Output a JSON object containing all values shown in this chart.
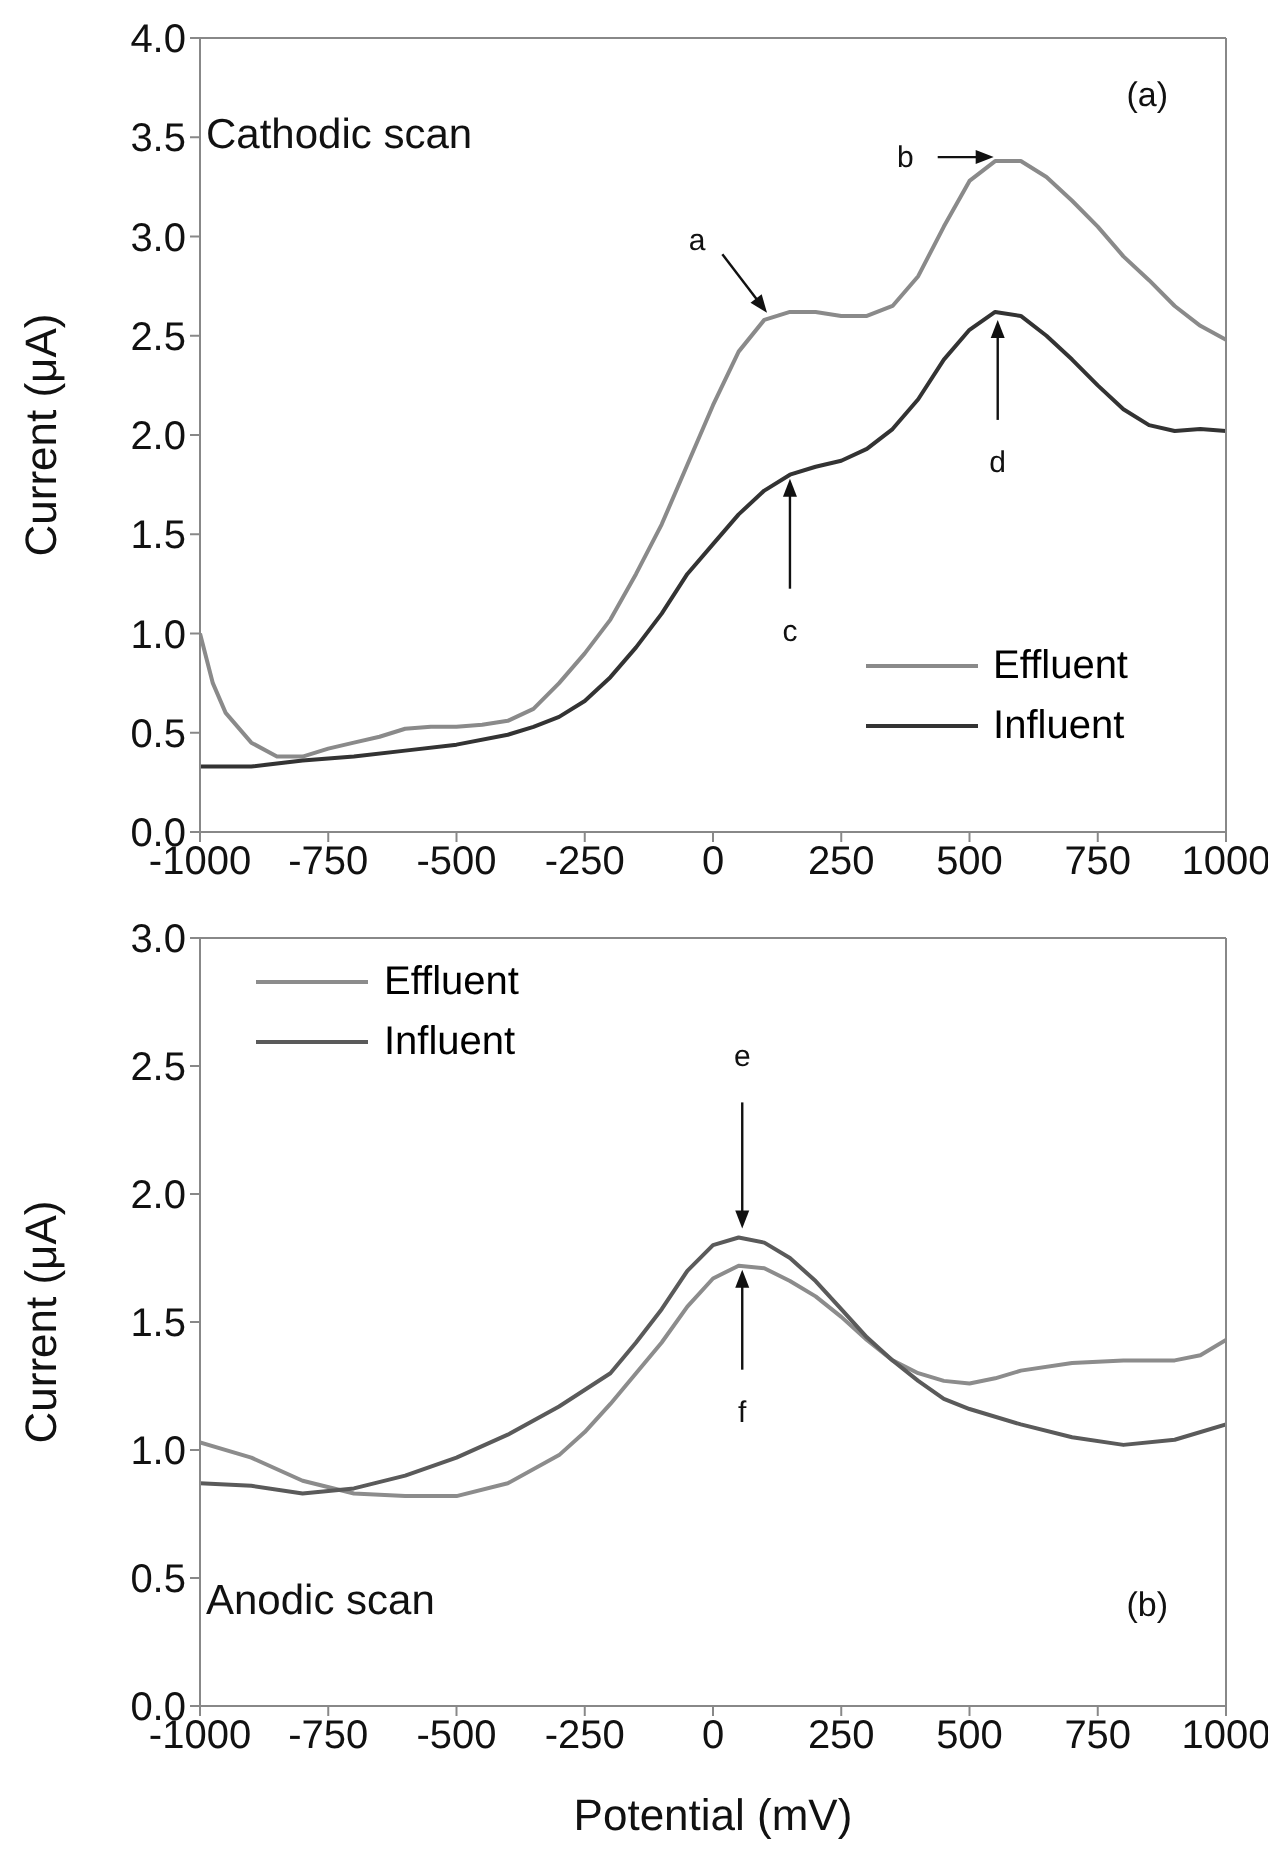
{
  "chart_data": [
    {
      "type": "line",
      "ylabel": "Current (μA)",
      "xlim": [
        -1000,
        1000
      ],
      "xticks": [
        -1000,
        -750,
        -500,
        -250,
        0,
        250,
        500,
        750,
        1000
      ],
      "ylim": [
        0,
        4
      ],
      "yticks": [
        {
          "value": 0,
          "label": "0.0"
        },
        0.5,
        {
          "value": 1,
          "label": "1.0"
        },
        1.5,
        {
          "value": 2,
          "label": "2.0"
        },
        2.5,
        {
          "value": 3,
          "label": "3.0"
        },
        3.5,
        {
          "value": 4,
          "label": "4.0"
        }
      ],
      "legend": "bottom right",
      "marker": "none",
      "line_style": "solid",
      "annotations": [
        "Cathodic scan",
        "(a)",
        {
          "text": "a",
          "x": 110,
          "y": 2.6
        },
        {
          "text": "b",
          "x": 555,
          "y": 3.4
        },
        "c",
        "d"
      ],
      "series": [
        {
          "name": "Effluent",
          "color": "#8a8a8a",
          "x": [
            -1000,
            -975,
            -950,
            -900,
            -850,
            -800,
            -750,
            -700,
            -650,
            -600,
            -550,
            -500,
            -450,
            -400,
            -350,
            -300,
            -250,
            -200,
            -150,
            -100,
            -50,
            0,
            50,
            100,
            150,
            200,
            250,
            300,
            350,
            400,
            450,
            500,
            550,
            600,
            650,
            700,
            750,
            800,
            850,
            900,
            950,
            1000
          ],
          "values": [
            1.0,
            0.75,
            0.6,
            0.45,
            0.38,
            0.38,
            0.42,
            0.45,
            0.48,
            0.52,
            0.53,
            0.53,
            0.54,
            0.56,
            0.62,
            0.75,
            0.9,
            1.07,
            1.3,
            1.55,
            1.85,
            2.15,
            2.42,
            2.58,
            2.62,
            2.62,
            2.6,
            2.6,
            2.65,
            2.8,
            3.05,
            3.28,
            3.38,
            3.38,
            3.3,
            3.18,
            3.05,
            2.9,
            2.78,
            2.65,
            2.55,
            2.48
          ]
        },
        {
          "name": "Influent",
          "color": "#333333",
          "x": [
            -1000,
            -900,
            -800,
            -700,
            -600,
            -500,
            -400,
            -350,
            -300,
            -250,
            -200,
            -150,
            -100,
            -50,
            0,
            50,
            100,
            150,
            200,
            250,
            300,
            350,
            400,
            450,
            500,
            550,
            600,
            650,
            700,
            750,
            800,
            850,
            900,
            950,
            1000
          ],
          "values": [
            0.33,
            0.33,
            0.36,
            0.38,
            0.41,
            0.44,
            0.49,
            0.53,
            0.58,
            0.66,
            0.78,
            0.93,
            1.1,
            1.3,
            1.45,
            1.6,
            1.72,
            1.8,
            1.84,
            1.87,
            1.93,
            2.03,
            2.18,
            2.38,
            2.53,
            2.62,
            2.6,
            2.5,
            2.38,
            2.25,
            2.13,
            2.05,
            2.02,
            2.03,
            2.02
          ]
        }
      ]
    },
    {
      "type": "line",
      "xlabel": "Potential (mV)",
      "ylabel": "Current (μA)",
      "xlim": [
        -1000,
        1000
      ],
      "xticks": [
        -1000,
        -750,
        -500,
        -250,
        0,
        250,
        500,
        750,
        1000
      ],
      "ylim": [
        0,
        3
      ],
      "yticks": [
        {
          "value": 0,
          "label": "0.0"
        },
        0.5,
        {
          "value": 1,
          "label": "1.0"
        },
        1.5,
        {
          "value": 2,
          "label": "2.0"
        },
        2.5,
        {
          "value": 3,
          "label": "3.0"
        }
      ],
      "legend": "top left",
      "marker": "none",
      "line_style": "solid",
      "annotations": [
        "Anodic scan",
        "(b)",
        "e",
        "f"
      ],
      "series": [
        {
          "name": "Effluent",
          "color": "#8c8c8c",
          "x": [
            -1000,
            -900,
            -800,
            -700,
            -600,
            -500,
            -400,
            -300,
            -250,
            -200,
            -150,
            -100,
            -50,
            0,
            50,
            100,
            150,
            200,
            250,
            300,
            350,
            400,
            450,
            500,
            550,
            600,
            700,
            800,
            900,
            950,
            1000
          ],
          "values": [
            1.03,
            0.97,
            0.88,
            0.83,
            0.82,
            0.82,
            0.87,
            0.98,
            1.07,
            1.18,
            1.3,
            1.42,
            1.56,
            1.67,
            1.72,
            1.71,
            1.66,
            1.6,
            1.52,
            1.43,
            1.35,
            1.3,
            1.27,
            1.26,
            1.28,
            1.31,
            1.34,
            1.35,
            1.35,
            1.37,
            1.43
          ]
        },
        {
          "name": "Influent",
          "color": "#5a5a5a",
          "x": [
            -1000,
            -900,
            -800,
            -700,
            -600,
            -500,
            -400,
            -300,
            -200,
            -150,
            -100,
            -50,
            0,
            50,
            100,
            150,
            200,
            250,
            300,
            350,
            400,
            450,
            500,
            600,
            700,
            800,
            900,
            1000
          ],
          "values": [
            0.87,
            0.86,
            0.83,
            0.85,
            0.9,
            0.97,
            1.06,
            1.17,
            1.3,
            1.42,
            1.55,
            1.7,
            1.8,
            1.83,
            1.81,
            1.75,
            1.66,
            1.55,
            1.44,
            1.35,
            1.27,
            1.2,
            1.16,
            1.1,
            1.05,
            1.02,
            1.04,
            1.1
          ]
        }
      ]
    }
  ]
}
